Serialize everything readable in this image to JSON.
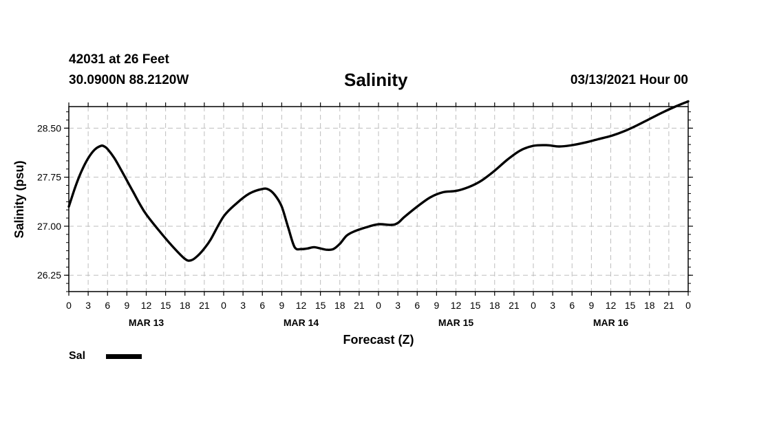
{
  "header": {
    "station": "42031 at 26 Feet",
    "location": "30.0900N 88.2120W",
    "title": "Salinity",
    "run": "03/13/2021 Hour 00"
  },
  "legend": {
    "label": "Sal",
    "color": "#000000"
  },
  "chart_data": {
    "type": "line",
    "title": "Salinity",
    "xlabel": "Forecast (Z)",
    "ylabel": "Salinity (psu)",
    "xlim": [
      0,
      96
    ],
    "ylim": [
      26.0,
      28.83
    ],
    "grid": true,
    "y_ticks": [
      "26.25",
      "27.00",
      "27.75",
      "28.50"
    ],
    "y_tick_values": [
      26.25,
      27.0,
      27.75,
      28.5
    ],
    "x_ticks": [
      {
        "hour": 0,
        "label": "0"
      },
      {
        "hour": 3,
        "label": "3"
      },
      {
        "hour": 6,
        "label": "6"
      },
      {
        "hour": 9,
        "label": "9"
      },
      {
        "hour": 12,
        "label": "12"
      },
      {
        "hour": 15,
        "label": "15"
      },
      {
        "hour": 18,
        "label": "18"
      },
      {
        "hour": 21,
        "label": "21"
      },
      {
        "hour": 24,
        "label": "0"
      },
      {
        "hour": 27,
        "label": "3"
      },
      {
        "hour": 30,
        "label": "6"
      },
      {
        "hour": 33,
        "label": "9"
      },
      {
        "hour": 36,
        "label": "12"
      },
      {
        "hour": 39,
        "label": "15"
      },
      {
        "hour": 42,
        "label": "18"
      },
      {
        "hour": 45,
        "label": "21"
      },
      {
        "hour": 48,
        "label": "0"
      },
      {
        "hour": 51,
        "label": "3"
      },
      {
        "hour": 54,
        "label": "6"
      },
      {
        "hour": 57,
        "label": "9"
      },
      {
        "hour": 60,
        "label": "12"
      },
      {
        "hour": 63,
        "label": "15"
      },
      {
        "hour": 66,
        "label": "18"
      },
      {
        "hour": 69,
        "label": "21"
      },
      {
        "hour": 72,
        "label": "0"
      },
      {
        "hour": 75,
        "label": "3"
      },
      {
        "hour": 78,
        "label": "6"
      },
      {
        "hour": 81,
        "label": "9"
      },
      {
        "hour": 84,
        "label": "12"
      },
      {
        "hour": 87,
        "label": "15"
      },
      {
        "hour": 90,
        "label": "18"
      },
      {
        "hour": 93,
        "label": "21"
      },
      {
        "hour": 96,
        "label": "0"
      }
    ],
    "day_labels": [
      {
        "hour": 12,
        "label": "MAR 13"
      },
      {
        "hour": 36,
        "label": "MAR 14"
      },
      {
        "hour": 60,
        "label": "MAR 15"
      },
      {
        "hour": 84,
        "label": "MAR 16"
      }
    ],
    "series": [
      {
        "name": "Sal",
        "x": [
          0,
          1,
          2,
          3,
          4,
          5,
          5.5,
          6,
          7,
          8,
          9,
          10,
          11,
          12,
          14,
          16,
          18,
          19,
          20,
          21,
          22,
          24,
          26,
          28,
          30,
          31,
          32,
          33,
          34,
          35,
          36,
          37,
          38,
          39,
          40,
          41,
          42,
          43,
          44,
          46,
          48,
          50,
          51,
          52,
          54,
          56,
          58,
          60,
          62,
          64,
          66,
          68,
          70,
          72,
          74,
          76,
          78,
          80,
          82,
          84,
          86,
          88,
          90,
          92,
          94,
          96
        ],
        "y": [
          27.3,
          27.6,
          27.85,
          28.04,
          28.17,
          28.23,
          28.22,
          28.18,
          28.05,
          27.88,
          27.7,
          27.52,
          27.34,
          27.18,
          26.93,
          26.7,
          26.5,
          26.48,
          26.55,
          26.66,
          26.8,
          27.15,
          27.35,
          27.5,
          27.57,
          27.56,
          27.47,
          27.3,
          26.98,
          26.68,
          26.65,
          26.66,
          26.68,
          26.66,
          26.64,
          26.65,
          26.73,
          26.85,
          26.91,
          26.98,
          27.03,
          27.02,
          27.05,
          27.14,
          27.3,
          27.44,
          27.52,
          27.54,
          27.6,
          27.7,
          27.85,
          28.02,
          28.16,
          28.23,
          28.24,
          28.22,
          28.24,
          28.28,
          28.33,
          28.38,
          28.45,
          28.54,
          28.64,
          28.74,
          28.83,
          28.91
        ]
      }
    ]
  }
}
